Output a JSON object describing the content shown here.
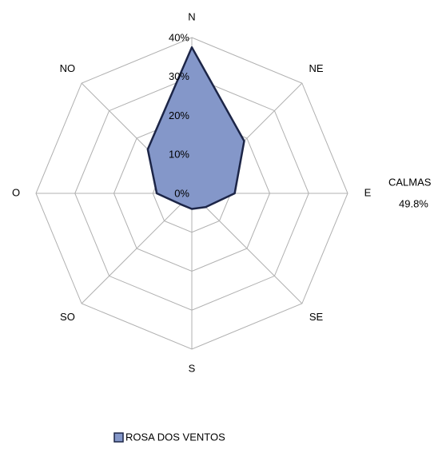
{
  "chart_data": {
    "type": "radar",
    "categories": [
      "N",
      "NE",
      "E",
      "SE",
      "S",
      "SO",
      "O",
      "NO"
    ],
    "series": [
      {
        "name": "ROSA DOS VENTOS",
        "color": "#8497c9",
        "values": [
          37.5,
          19,
          11,
          5,
          4,
          4,
          9,
          16
        ]
      }
    ],
    "rlim": [
      0,
      40
    ],
    "rticks": [
      {
        "value": 0,
        "label": "0%"
      },
      {
        "value": 10,
        "label": "10%"
      },
      {
        "value": 20,
        "label": "20%"
      },
      {
        "value": 30,
        "label": "30%"
      },
      {
        "value": 40,
        "label": "40%"
      }
    ],
    "annotations": [
      "CALMAS",
      "49.8%"
    ],
    "line_color": "#1c2547",
    "grid": true
  }
}
